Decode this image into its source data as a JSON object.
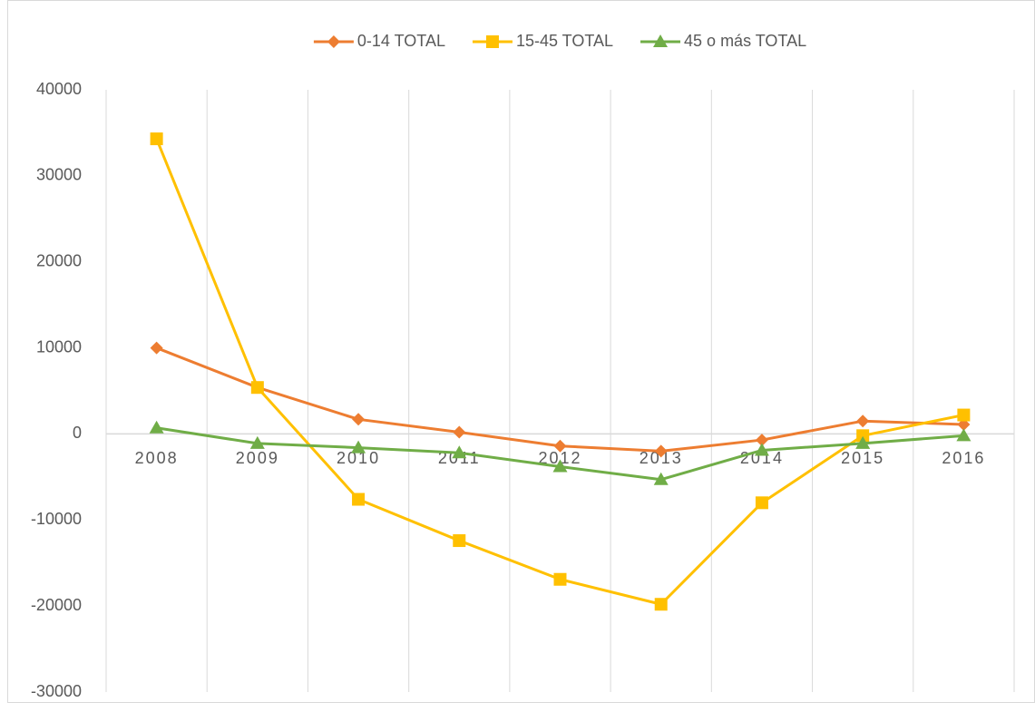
{
  "chart_data": {
    "type": "line",
    "categories": [
      "2008",
      "2009",
      "2010",
      "2011",
      "2012",
      "2013",
      "2014",
      "2015",
      "2016"
    ],
    "series": [
      {
        "name": "0-14 TOTAL",
        "color": "#ED7D31",
        "marker": "diamond",
        "values": [
          10000,
          5400,
          1700,
          200,
          -1400,
          -2000,
          -700,
          1500,
          1100
        ]
      },
      {
        "name": "15-45 TOTAL",
        "color": "#FFC000",
        "marker": "square",
        "values": [
          34300,
          5400,
          -7600,
          -12400,
          -16900,
          -19800,
          -8000,
          -200,
          2200
        ]
      },
      {
        "name": "45 o más TOTAL",
        "color": "#70AD47",
        "marker": "triangle",
        "values": [
          700,
          -1100,
          -1600,
          -2200,
          -3800,
          -5300,
          -1900,
          -1100,
          -200
        ]
      }
    ],
    "ylim": [
      -30000,
      40000
    ],
    "yticks": [
      -30000,
      -20000,
      -10000,
      0,
      10000,
      20000,
      30000,
      40000
    ],
    "legend": "top"
  }
}
